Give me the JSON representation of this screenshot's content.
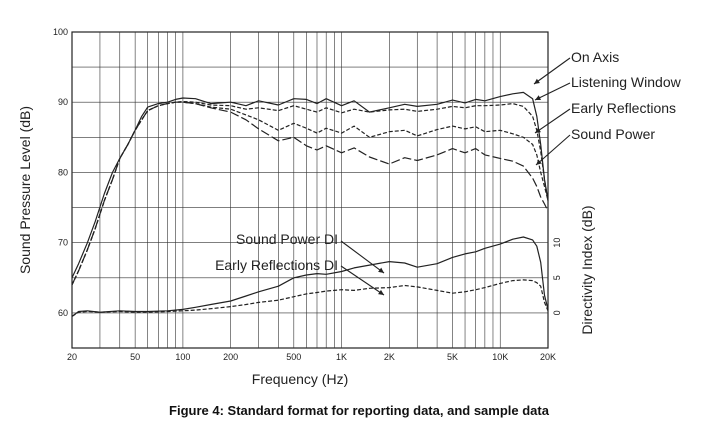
{
  "caption": "Figure 4:  Standard format for reporting data, and sample data",
  "chart_data": {
    "type": "line",
    "xlabel": "Frequency (Hz)",
    "ylabel": "Sound Pressure Level (dB)",
    "y2label": "Directivity Index (dB)",
    "x_scale": "log",
    "xlim": [
      20,
      20000
    ],
    "ylim": [
      55,
      100
    ],
    "y2lim": [
      -5,
      40
    ],
    "grid": true,
    "x_ticks": [
      {
        "value": 20,
        "label": "20"
      },
      {
        "value": 50,
        "label": "50"
      },
      {
        "value": 100,
        "label": "100"
      },
      {
        "value": 200,
        "label": "200"
      },
      {
        "value": 500,
        "label": "500"
      },
      {
        "value": 1000,
        "label": "1K"
      },
      {
        "value": 2000,
        "label": "2K"
      },
      {
        "value": 5000,
        "label": "5K"
      },
      {
        "value": 10000,
        "label": "10K"
      },
      {
        "value": 20000,
        "label": "20K"
      }
    ],
    "y_ticks": [
      {
        "value": 100,
        "label": "100"
      },
      {
        "value": 90,
        "label": "90"
      },
      {
        "value": 80,
        "label": "80"
      },
      {
        "value": 70,
        "label": "70"
      },
      {
        "value": 60,
        "label": "60"
      }
    ],
    "y2_ticks": [
      {
        "value": 10,
        "label": "10"
      },
      {
        "value": 5,
        "label": "5"
      },
      {
        "value": 0,
        "label": "0"
      }
    ],
    "series": [
      {
        "name": "On Axis",
        "axis": "left",
        "style": "solid",
        "x": [
          20,
          22,
          25,
          28,
          32,
          36,
          40,
          45,
          50,
          55,
          60,
          70,
          80,
          90,
          100,
          120,
          150,
          200,
          250,
          300,
          400,
          500,
          600,
          700,
          800,
          1000,
          1200,
          1500,
          2000,
          2500,
          3000,
          4000,
          5000,
          6000,
          7000,
          8000,
          10000,
          12000,
          14000,
          16000,
          17000,
          18000,
          19000,
          20000
        ],
        "y": [
          65,
          67,
          70,
          73,
          77,
          80,
          82,
          84,
          86,
          88,
          89.3,
          89.8,
          90,
          90.4,
          90.6,
          90.5,
          89.8,
          90,
          89.5,
          90.2,
          89.6,
          90.5,
          90.4,
          89.8,
          90.5,
          89.5,
          90.2,
          88.6,
          89.2,
          89.7,
          89.4,
          89.7,
          90.3,
          89.9,
          90.4,
          90.2,
          90.8,
          91.2,
          91.4,
          90.5,
          88,
          84,
          79,
          76
        ]
      },
      {
        "name": "Listening Window",
        "axis": "left",
        "style": "dashed",
        "x": [
          20,
          22,
          25,
          28,
          32,
          36,
          40,
          45,
          50,
          55,
          60,
          70,
          80,
          90,
          100,
          120,
          150,
          200,
          250,
          300,
          400,
          500,
          600,
          700,
          800,
          1000,
          1200,
          1500,
          2000,
          2500,
          3000,
          4000,
          5000,
          6000,
          7000,
          8000,
          10000,
          12000,
          14000,
          16000,
          17000,
          18000,
          19000,
          20000
        ],
        "y": [
          64,
          66,
          69,
          72,
          76,
          79,
          82,
          84,
          86,
          87.5,
          88.8,
          89.5,
          89.8,
          90,
          90.1,
          90,
          89.6,
          89.5,
          89,
          89.2,
          88.8,
          89.5,
          89,
          88.6,
          89.2,
          88.5,
          89,
          88.6,
          88.9,
          89,
          88.7,
          89,
          89.4,
          89.2,
          89.5,
          89.5,
          89.6,
          89.8,
          89.4,
          88,
          86,
          83,
          79,
          76
        ]
      },
      {
        "name": "Early Reflections",
        "axis": "left",
        "style": "dashed",
        "x": [
          20,
          22,
          25,
          28,
          32,
          36,
          40,
          45,
          50,
          55,
          60,
          70,
          80,
          90,
          100,
          120,
          150,
          200,
          250,
          300,
          400,
          500,
          600,
          700,
          800,
          1000,
          1200,
          1500,
          2000,
          2500,
          3000,
          4000,
          5000,
          6000,
          7000,
          8000,
          10000,
          12000,
          14000,
          16000,
          17000,
          18000,
          19000,
          20000
        ],
        "y": [
          64,
          66,
          69,
          72,
          76,
          79,
          82,
          84,
          86,
          87.5,
          88.8,
          89.5,
          89.8,
          90,
          90,
          89.8,
          89.3,
          89,
          88.2,
          87.5,
          86,
          87,
          86.3,
          85.6,
          86.3,
          85.6,
          86.6,
          85,
          85.8,
          86,
          85.2,
          86.1,
          86.6,
          86.2,
          86.5,
          85.8,
          86,
          85.5,
          85,
          84,
          82.5,
          80,
          78,
          76
        ]
      },
      {
        "name": "Sound Power",
        "axis": "left",
        "style": "longdash",
        "x": [
          20,
          22,
          25,
          28,
          32,
          36,
          40,
          45,
          50,
          55,
          60,
          70,
          80,
          90,
          100,
          120,
          150,
          200,
          250,
          300,
          400,
          500,
          600,
          700,
          800,
          1000,
          1200,
          1500,
          2000,
          2500,
          3000,
          4000,
          5000,
          6000,
          7000,
          8000,
          10000,
          12000,
          14000,
          16000,
          17000,
          18000,
          19000,
          20000
        ],
        "y": [
          64,
          66,
          69,
          72,
          76,
          79,
          82,
          84,
          86,
          87.5,
          88.8,
          89.5,
          89.8,
          90,
          90,
          89.8,
          89.2,
          88.6,
          87.5,
          86.2,
          84.5,
          85,
          83.8,
          83.2,
          83.8,
          82.8,
          83.5,
          82.2,
          81.2,
          82.1,
          81.7,
          82.5,
          83.4,
          82.8,
          83.4,
          82.5,
          82,
          81.6,
          80.9,
          79.2,
          78,
          76.5,
          75.5,
          74.5
        ]
      },
      {
        "name": "Sound Power DI",
        "axis": "right",
        "style": "solid",
        "x": [
          20,
          22,
          25,
          30,
          40,
          50,
          60,
          80,
          100,
          120,
          150,
          200,
          250,
          300,
          400,
          500,
          600,
          700,
          800,
          1000,
          1200,
          1500,
          2000,
          2500,
          3000,
          4000,
          5000,
          6000,
          7000,
          8000,
          10000,
          12000,
          14000,
          16000,
          17000,
          18000,
          19000,
          20000
        ],
        "y": [
          -0.5,
          0.2,
          0.3,
          0.1,
          0.3,
          0.2,
          0.2,
          0.3,
          0.5,
          0.8,
          1.2,
          1.7,
          2.4,
          3,
          3.8,
          5,
          5.4,
          5.6,
          5.5,
          5.9,
          6.4,
          6.8,
          7.3,
          7.1,
          6.5,
          7,
          7.9,
          8.4,
          8.7,
          9.2,
          9.8,
          10.5,
          10.8,
          10.4,
          9.5,
          7.2,
          2.5,
          0.5
        ]
      },
      {
        "name": "Early Reflections DI",
        "axis": "right",
        "style": "dashed",
        "x": [
          20,
          22,
          25,
          30,
          40,
          50,
          60,
          80,
          100,
          120,
          150,
          200,
          250,
          300,
          400,
          500,
          600,
          700,
          800,
          1000,
          1200,
          1500,
          2000,
          2500,
          3000,
          4000,
          5000,
          6000,
          7000,
          8000,
          10000,
          12000,
          14000,
          16000,
          17000,
          18000,
          19000,
          20000
        ],
        "y": [
          -0.5,
          0.1,
          0.2,
          0.1,
          0.2,
          0.1,
          0.1,
          0.2,
          0.3,
          0.4,
          0.6,
          0.9,
          1.2,
          1.5,
          1.8,
          2.3,
          2.7,
          2.9,
          3.1,
          3.3,
          3.2,
          3.5,
          3.6,
          3.9,
          3.7,
          3.2,
          2.8,
          3,
          3.3,
          3.6,
          4.2,
          4.6,
          4.7,
          4.6,
          4.3,
          3.8,
          1.5,
          0.3
        ]
      }
    ],
    "callout_labels": [
      {
        "series": "On Axis",
        "text": "On Axis"
      },
      {
        "series": "Listening Window",
        "text": "Listening Window"
      },
      {
        "series": "Early Reflections",
        "text": "Early Reflections"
      },
      {
        "series": "Sound Power",
        "text": "Sound Power"
      },
      {
        "series": "Sound Power DI",
        "text": "Sound Power DI"
      },
      {
        "series": "Early Reflections DI",
        "text": "Early Reflections DI"
      }
    ],
    "line_color": "#222222"
  }
}
